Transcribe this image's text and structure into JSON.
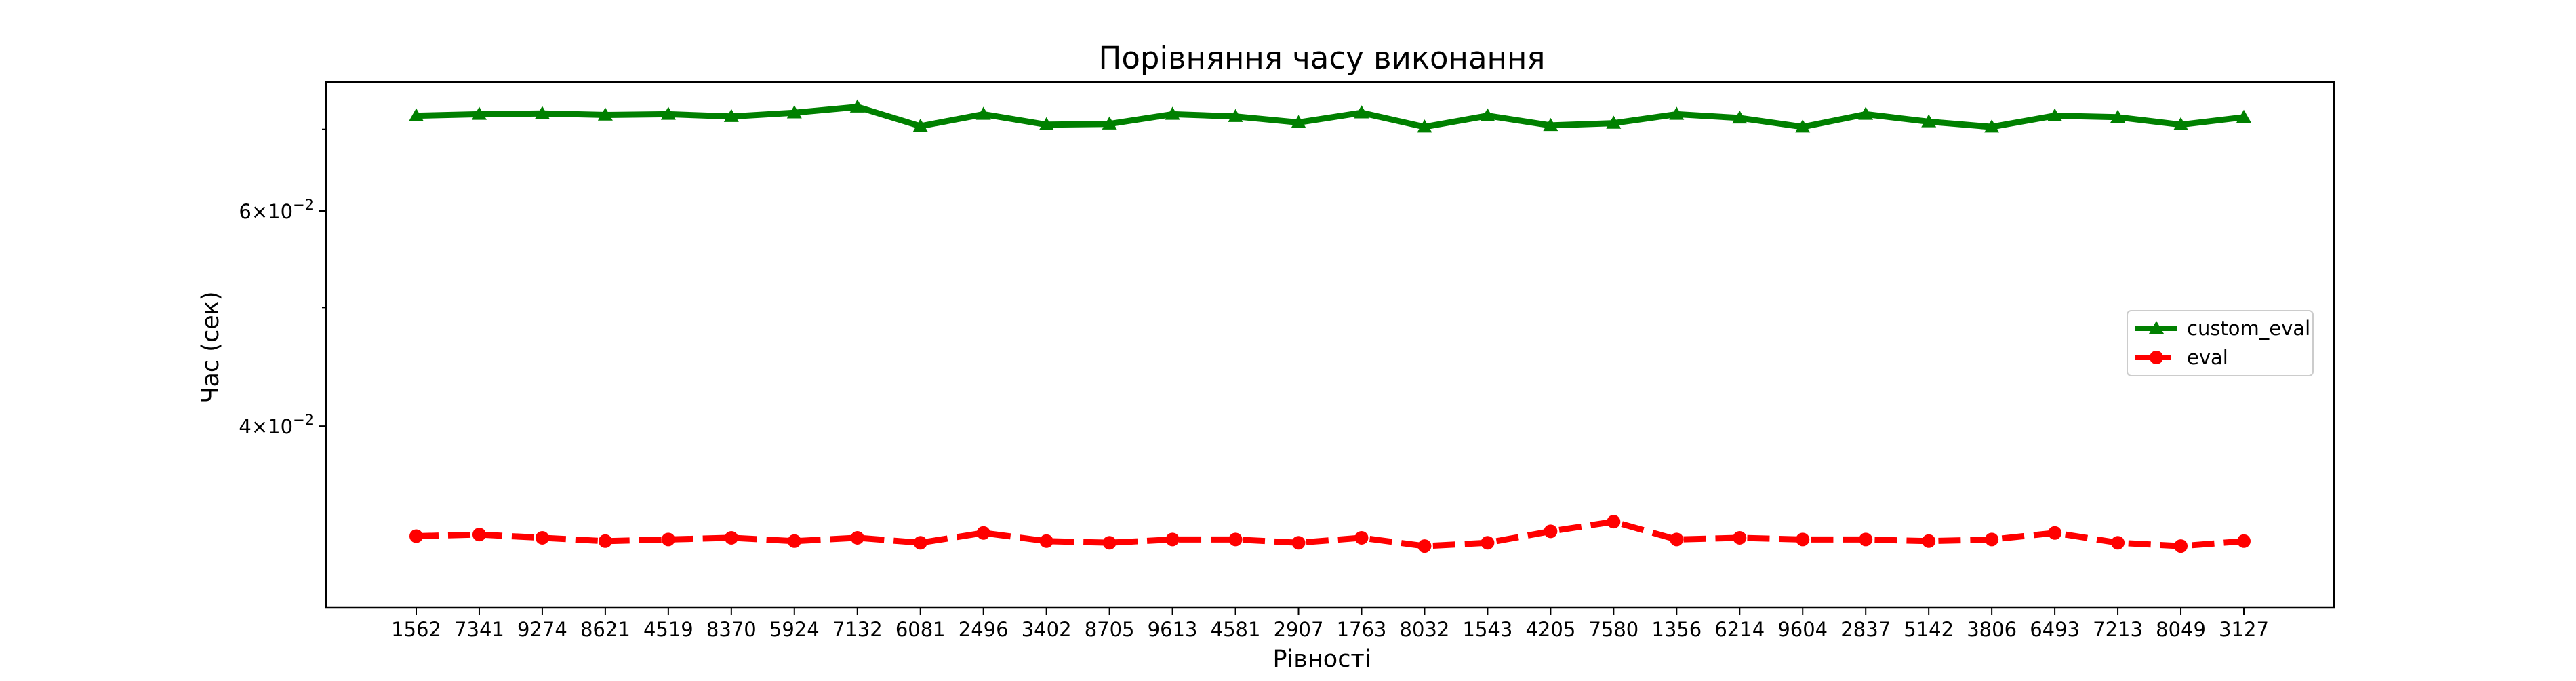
{
  "chart_data": {
    "type": "line",
    "title": "Порівняння часу виконання",
    "xlabel": "Рівності",
    "ylabel": "Час (сек)",
    "yscale": "log",
    "ylim": [
      0.0284,
      0.0765
    ],
    "grid": false,
    "legend_position": "center-right",
    "categories": [
      "1562",
      "7341",
      "9274",
      "8621",
      "4519",
      "8370",
      "5924",
      "7132",
      "6081",
      "2496",
      "3402",
      "8705",
      "9613",
      "4581",
      "2907",
      "1763",
      "8032",
      "1543",
      "4205",
      "7580",
      "1356",
      "6214",
      "9604",
      "2837",
      "5142",
      "3806",
      "6493",
      "7213",
      "8049",
      "3127"
    ],
    "y_ticks": [
      {
        "value": 0.06,
        "mantissa": "6",
        "exp": "−2"
      },
      {
        "value": 0.04,
        "mantissa": "4",
        "exp": "−2"
      }
    ],
    "y_minor_ticks": [
      0.05,
      0.07
    ],
    "series": [
      {
        "name": "custom_eval",
        "color": "#008000",
        "marker": "triangle",
        "linestyle": "solid",
        "values": [
          0.0718,
          0.072,
          0.0721,
          0.0719,
          0.072,
          0.0717,
          0.0722,
          0.073,
          0.0704,
          0.072,
          0.0706,
          0.0707,
          0.072,
          0.0717,
          0.0709,
          0.0722,
          0.0703,
          0.0718,
          0.0705,
          0.0708,
          0.072,
          0.0715,
          0.0703,
          0.072,
          0.071,
          0.0703,
          0.0718,
          0.0716,
          0.0706,
          0.0716
        ]
      },
      {
        "name": "eval",
        "color": "#ff0000",
        "marker": "circle",
        "linestyle": "dashed",
        "values": [
          0.0325,
          0.0326,
          0.0324,
          0.0322,
          0.0323,
          0.0324,
          0.0322,
          0.0324,
          0.0321,
          0.0327,
          0.0322,
          0.0321,
          0.0323,
          0.0323,
          0.0321,
          0.0324,
          0.0319,
          0.0321,
          0.0328,
          0.0334,
          0.0323,
          0.0324,
          0.0323,
          0.0323,
          0.0322,
          0.0323,
          0.0327,
          0.0321,
          0.0319,
          0.0322
        ]
      }
    ]
  }
}
